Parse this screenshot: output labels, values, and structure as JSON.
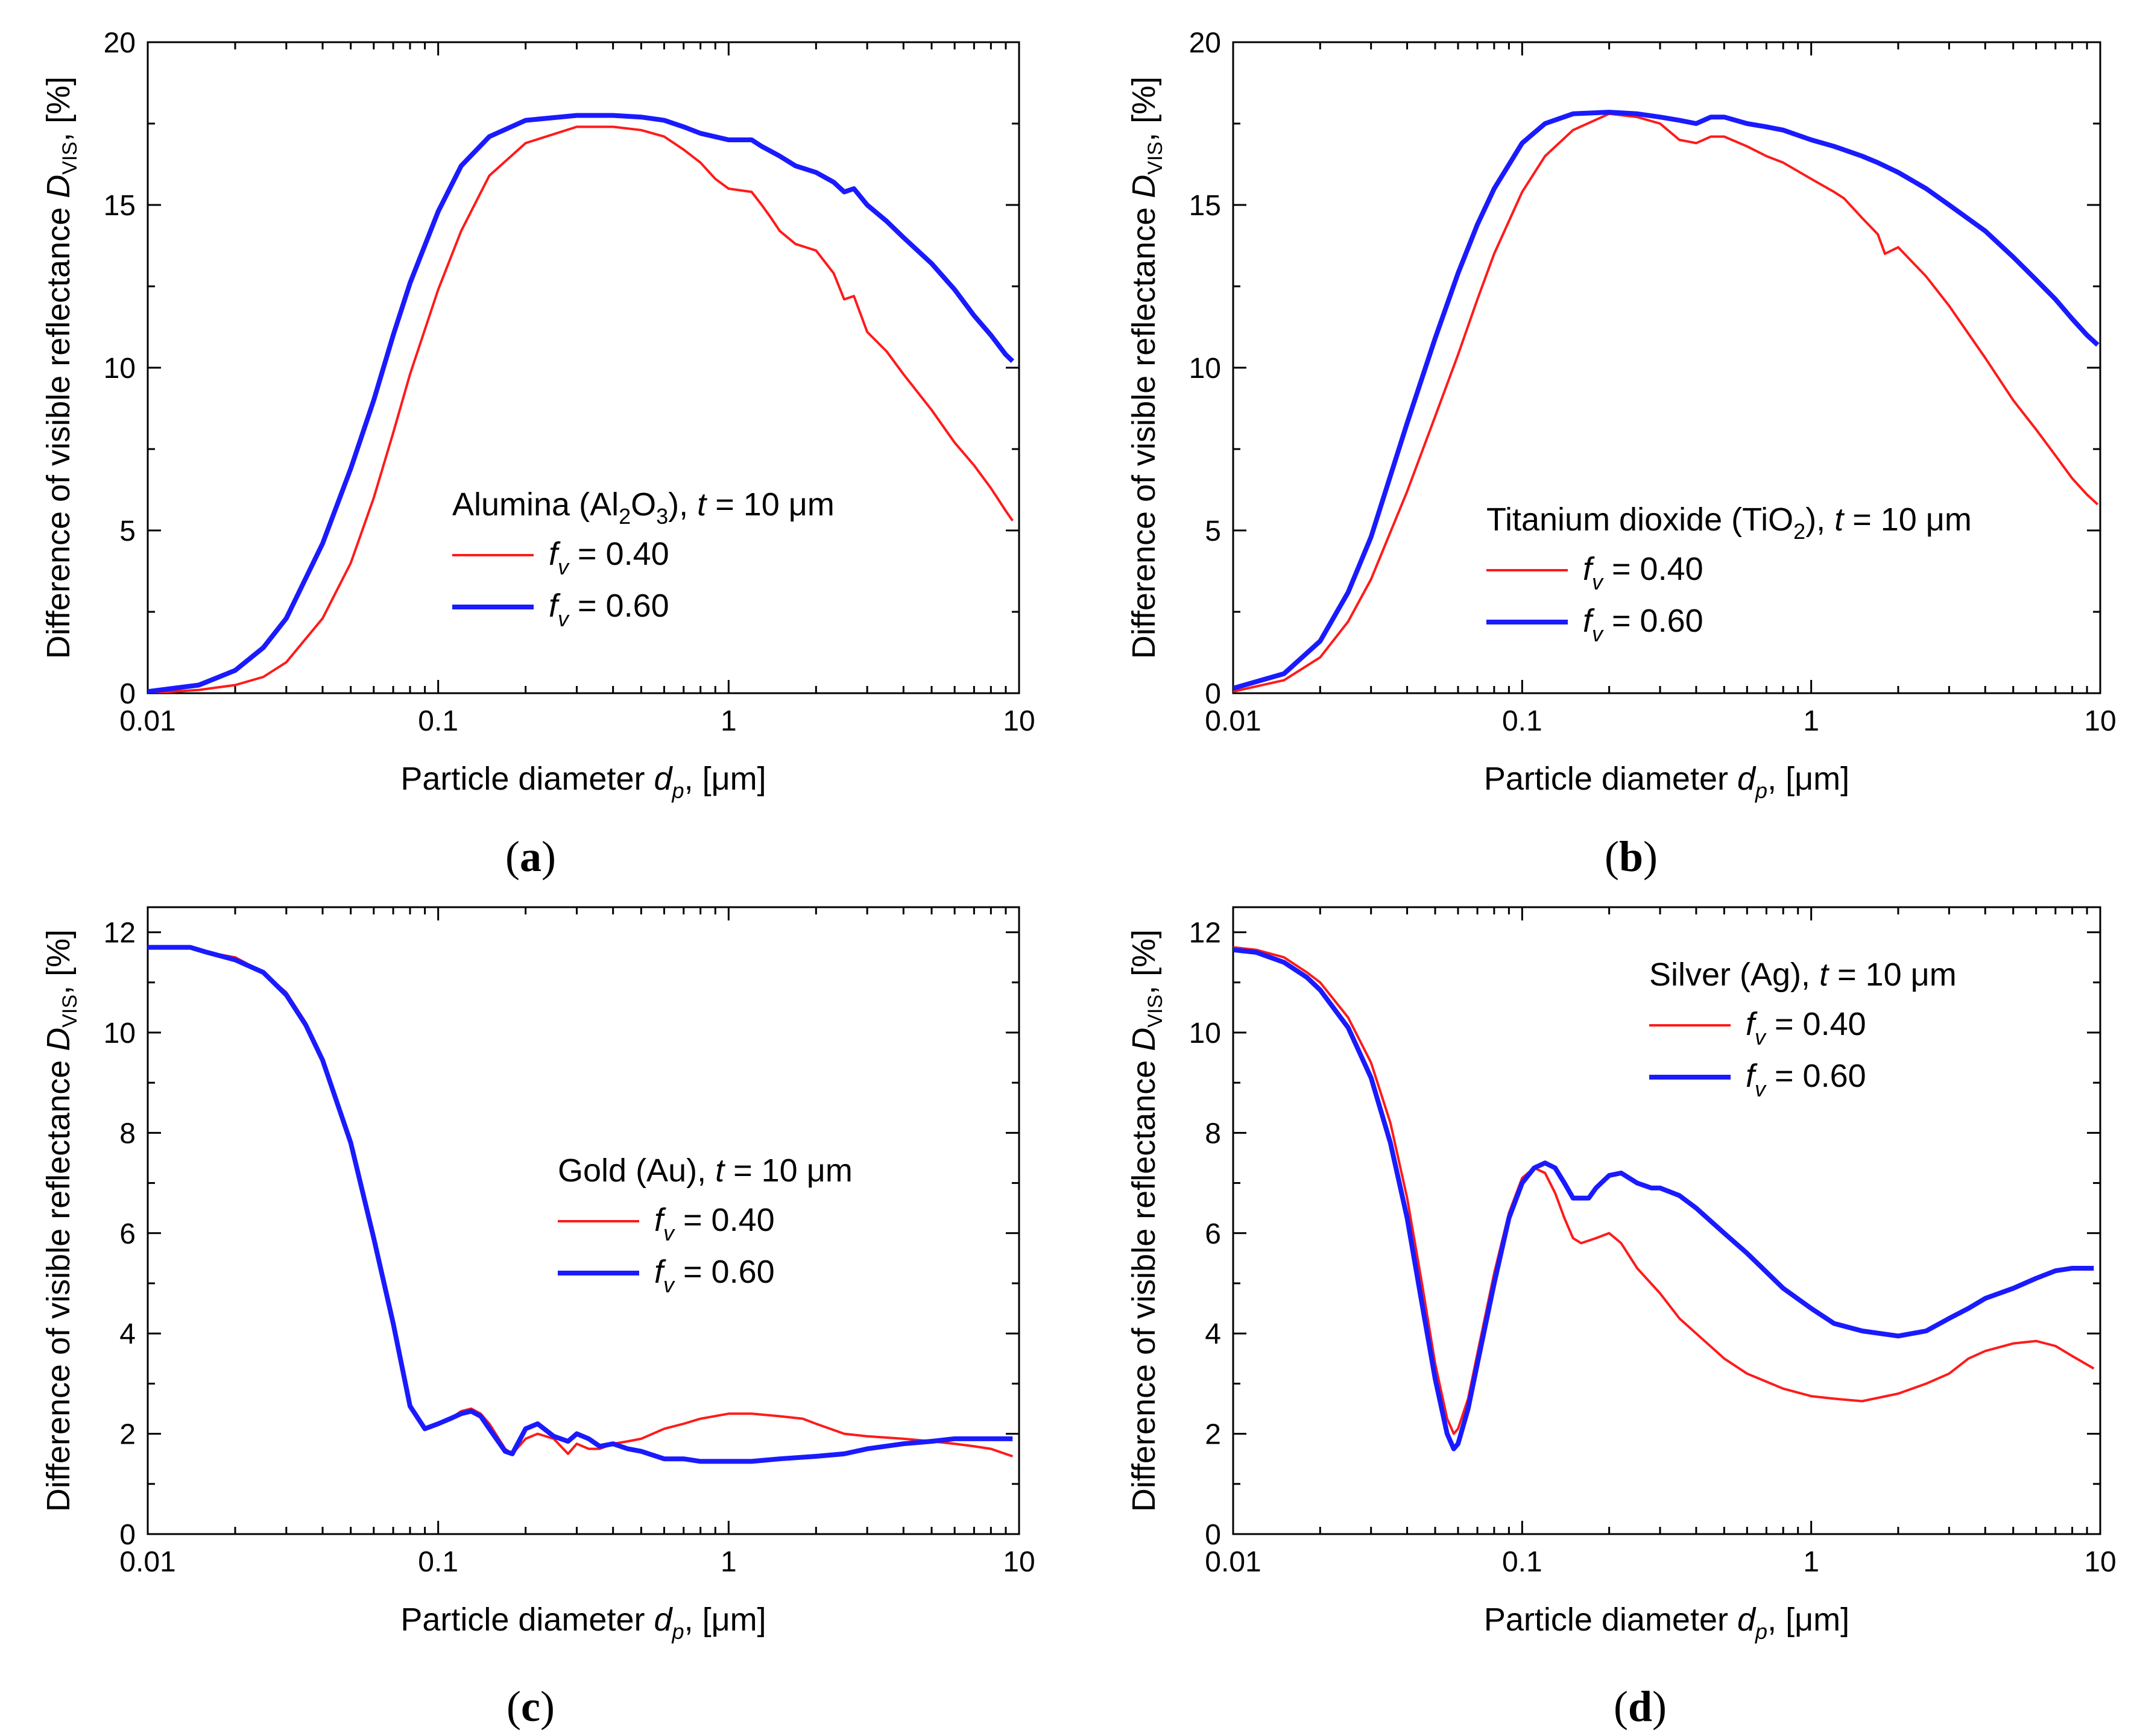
{
  "colors": {
    "series_040": "#ff1a1a",
    "series_060": "#1a1aff",
    "axis": "#000000"
  },
  "axis_labels": {
    "ylabel_prefix": "Difference of visible reflectance ",
    "ylabel_symbol": "D",
    "ylabel_sub": "VIS",
    "ylabel_suffix": ", [%]",
    "xlabel_prefix": "Particle diameter ",
    "xlabel_symbol": "d",
    "xlabel_sub": "p",
    "xlabel_suffix": ", [μm]"
  },
  "legend_common": {
    "t_symbol": "t",
    "t_value": " = 10 μm",
    "f_symbol": "f",
    "f_sub": "v",
    "f040": " = 0.40",
    "f060": " = 0.60"
  },
  "x_tick_labels": [
    "0.01",
    "0.1",
    "1",
    "10"
  ],
  "chart_data": [
    {
      "id": "a",
      "type": "line",
      "panel_label": "a",
      "material": "Alumina (Al",
      "material_sub": "2",
      "material_mid": "O",
      "material_sub2": "3",
      "material_end": "), ",
      "xscale": "log",
      "xlim": [
        0.01,
        10
      ],
      "ylim": [
        0,
        20
      ],
      "yticks": [
        0,
        5,
        10,
        15,
        20
      ],
      "ytick_labels": [
        "0",
        "5",
        "10",
        "15",
        "20"
      ],
      "legend_position": "center-right",
      "series": [
        {
          "name": "f_v = 0.40",
          "x": [
            0.01,
            0.015,
            0.02,
            0.025,
            0.03,
            0.04,
            0.05,
            0.06,
            0.07,
            0.08,
            0.1,
            0.12,
            0.15,
            0.2,
            0.3,
            0.4,
            0.5,
            0.6,
            0.7,
            0.8,
            0.9,
            1.0,
            1.2,
            1.3,
            1.4,
            1.5,
            1.7,
            2.0,
            2.3,
            2.5,
            2.7,
            3.0,
            3.5,
            4.0,
            5.0,
            6.0,
            7.0,
            8.0,
            9.0,
            9.5
          ],
          "y": [
            0.0,
            0.1,
            0.25,
            0.5,
            0.95,
            2.3,
            4.0,
            6.0,
            8.0,
            9.8,
            12.4,
            14.2,
            15.9,
            16.9,
            17.4,
            17.4,
            17.3,
            17.1,
            16.7,
            16.3,
            15.8,
            15.5,
            15.4,
            15.0,
            14.6,
            14.2,
            13.8,
            13.6,
            12.9,
            12.1,
            12.2,
            11.1,
            10.5,
            9.8,
            8.7,
            7.7,
            7.0,
            6.3,
            5.6,
            5.3
          ]
        },
        {
          "name": "f_v = 0.60",
          "x": [
            0.01,
            0.015,
            0.02,
            0.025,
            0.03,
            0.04,
            0.05,
            0.06,
            0.07,
            0.08,
            0.1,
            0.12,
            0.15,
            0.2,
            0.3,
            0.4,
            0.5,
            0.6,
            0.7,
            0.8,
            1.0,
            1.2,
            1.3,
            1.5,
            1.7,
            2.0,
            2.3,
            2.5,
            2.7,
            3.0,
            3.5,
            4.0,
            5.0,
            6.0,
            7.0,
            8.0,
            9.0,
            9.5
          ],
          "y": [
            0.05,
            0.25,
            0.7,
            1.4,
            2.3,
            4.6,
            6.9,
            9.0,
            11.0,
            12.6,
            14.8,
            16.2,
            17.1,
            17.6,
            17.75,
            17.75,
            17.7,
            17.6,
            17.4,
            17.2,
            17.0,
            17.0,
            16.8,
            16.5,
            16.2,
            16.0,
            15.7,
            15.4,
            15.5,
            15.0,
            14.5,
            14.0,
            13.2,
            12.4,
            11.6,
            11.0,
            10.4,
            10.2
          ]
        }
      ]
    },
    {
      "id": "b",
      "type": "line",
      "panel_label": "b",
      "material": "Titanium dioxide (TiO",
      "material_sub": "2",
      "material_mid": "",
      "material_sub2": "",
      "material_end": "), ",
      "xscale": "log",
      "xlim": [
        0.01,
        10
      ],
      "ylim": [
        0,
        20
      ],
      "yticks": [
        0,
        5,
        10,
        15,
        20
      ],
      "ytick_labels": [
        "0",
        "5",
        "10",
        "15",
        "20"
      ],
      "legend_position": "center-right",
      "series": [
        {
          "name": "f_v = 0.40",
          "x": [
            0.01,
            0.015,
            0.02,
            0.025,
            0.03,
            0.04,
            0.05,
            0.06,
            0.07,
            0.08,
            0.1,
            0.12,
            0.15,
            0.2,
            0.25,
            0.3,
            0.35,
            0.4,
            0.45,
            0.5,
            0.6,
            0.7,
            0.8,
            1.0,
            1.2,
            1.3,
            1.5,
            1.7,
            1.8,
            2.0,
            2.5,
            3.0,
            4.0,
            5.0,
            6.0,
            7.0,
            8.0,
            9.0,
            9.8
          ],
          "y": [
            0.05,
            0.4,
            1.1,
            2.2,
            3.5,
            6.2,
            8.5,
            10.4,
            12.1,
            13.5,
            15.4,
            16.5,
            17.3,
            17.8,
            17.7,
            17.5,
            17.0,
            16.9,
            17.1,
            17.1,
            16.8,
            16.5,
            16.3,
            15.8,
            15.4,
            15.2,
            14.6,
            14.1,
            13.5,
            13.7,
            12.8,
            11.9,
            10.3,
            9.0,
            8.1,
            7.3,
            6.6,
            6.1,
            5.8
          ]
        },
        {
          "name": "f_v = 0.60",
          "x": [
            0.01,
            0.015,
            0.02,
            0.025,
            0.03,
            0.04,
            0.05,
            0.06,
            0.07,
            0.08,
            0.1,
            0.12,
            0.15,
            0.2,
            0.25,
            0.3,
            0.35,
            0.4,
            0.45,
            0.5,
            0.6,
            0.7,
            0.8,
            1.0,
            1.2,
            1.5,
            1.7,
            2.0,
            2.5,
            3.0,
            4.0,
            5.0,
            6.0,
            7.0,
            8.0,
            9.0,
            9.8
          ],
          "y": [
            0.15,
            0.6,
            1.6,
            3.1,
            4.8,
            8.3,
            10.9,
            12.9,
            14.4,
            15.5,
            16.9,
            17.5,
            17.8,
            17.85,
            17.8,
            17.7,
            17.6,
            17.5,
            17.7,
            17.7,
            17.5,
            17.4,
            17.3,
            17.0,
            16.8,
            16.5,
            16.3,
            16.0,
            15.5,
            15.0,
            14.2,
            13.4,
            12.7,
            12.1,
            11.5,
            11.0,
            10.7
          ]
        }
      ]
    },
    {
      "id": "c",
      "type": "line",
      "panel_label": "c",
      "material": "Gold (Au), ",
      "material_sub": "",
      "material_mid": "",
      "material_sub2": "",
      "material_end": "",
      "xscale": "log",
      "xlim": [
        0.01,
        10
      ],
      "ylim": [
        0,
        12.5
      ],
      "yticks": [
        0,
        2,
        4,
        6,
        8,
        10,
        12
      ],
      "ytick_labels": [
        "0",
        "2",
        "4",
        "6",
        "8",
        "10",
        "12"
      ],
      "legend_position": "center-right",
      "series": [
        {
          "name": "f_v = 0.40",
          "x": [
            0.01,
            0.012,
            0.014,
            0.016,
            0.02,
            0.025,
            0.03,
            0.035,
            0.04,
            0.05,
            0.06,
            0.07,
            0.08,
            0.09,
            0.1,
            0.11,
            0.12,
            0.13,
            0.14,
            0.15,
            0.17,
            0.18,
            0.2,
            0.22,
            0.25,
            0.28,
            0.3,
            0.33,
            0.36,
            0.4,
            0.45,
            0.5,
            0.6,
            0.7,
            0.8,
            1.0,
            1.2,
            1.5,
            1.8,
            2.0,
            2.5,
            3.0,
            4.0,
            5.0,
            6.0,
            7.0,
            8.0,
            9.5
          ],
          "y": [
            11.7,
            11.7,
            11.7,
            11.6,
            11.5,
            11.2,
            10.8,
            10.2,
            9.5,
            7.8,
            6.0,
            4.3,
            2.6,
            2.1,
            2.2,
            2.3,
            2.45,
            2.5,
            2.4,
            2.2,
            1.7,
            1.6,
            1.9,
            2.0,
            1.9,
            1.6,
            1.8,
            1.7,
            1.7,
            1.8,
            1.85,
            1.9,
            2.1,
            2.2,
            2.3,
            2.4,
            2.4,
            2.35,
            2.3,
            2.2,
            2.0,
            1.95,
            1.9,
            1.85,
            1.8,
            1.75,
            1.7,
            1.55
          ]
        },
        {
          "name": "f_v = 0.60",
          "x": [
            0.01,
            0.012,
            0.014,
            0.016,
            0.02,
            0.025,
            0.03,
            0.035,
            0.04,
            0.05,
            0.06,
            0.07,
            0.08,
            0.09,
            0.1,
            0.11,
            0.12,
            0.13,
            0.14,
            0.15,
            0.17,
            0.18,
            0.2,
            0.22,
            0.25,
            0.28,
            0.3,
            0.33,
            0.36,
            0.4,
            0.45,
            0.5,
            0.6,
            0.7,
            0.8,
            1.0,
            1.2,
            1.5,
            2.0,
            2.5,
            3.0,
            4.0,
            5.0,
            6.0,
            7.0,
            8.0,
            9.5
          ],
          "y": [
            11.7,
            11.7,
            11.7,
            11.6,
            11.45,
            11.2,
            10.75,
            10.15,
            9.45,
            7.8,
            5.9,
            4.2,
            2.55,
            2.1,
            2.2,
            2.3,
            2.4,
            2.45,
            2.35,
            2.1,
            1.65,
            1.6,
            2.1,
            2.2,
            1.95,
            1.85,
            2.0,
            1.9,
            1.75,
            1.8,
            1.7,
            1.65,
            1.5,
            1.5,
            1.45,
            1.45,
            1.45,
            1.5,
            1.55,
            1.6,
            1.7,
            1.8,
            1.85,
            1.9,
            1.9,
            1.9,
            1.9
          ]
        }
      ]
    },
    {
      "id": "d",
      "type": "line",
      "panel_label": "d",
      "material": "Silver (Ag), ",
      "material_sub": "",
      "material_mid": "",
      "material_sub2": "",
      "material_end": "",
      "xscale": "log",
      "xlim": [
        0.01,
        10
      ],
      "ylim": [
        0,
        12.5
      ],
      "yticks": [
        0,
        2,
        4,
        6,
        8,
        10,
        12
      ],
      "ytick_labels": [
        "0",
        "2",
        "4",
        "6",
        "8",
        "10",
        "12"
      ],
      "legend_position": "top-right",
      "series": [
        {
          "name": "f_v = 0.40",
          "x": [
            0.01,
            0.012,
            0.015,
            0.018,
            0.02,
            0.025,
            0.03,
            0.035,
            0.04,
            0.045,
            0.05,
            0.055,
            0.058,
            0.06,
            0.065,
            0.07,
            0.08,
            0.09,
            0.1,
            0.11,
            0.12,
            0.13,
            0.14,
            0.15,
            0.16,
            0.18,
            0.2,
            0.22,
            0.25,
            0.3,
            0.35,
            0.4,
            0.5,
            0.6,
            0.8,
            1.0,
            1.2,
            1.5,
            2.0,
            2.5,
            3.0,
            3.5,
            4.0,
            5.0,
            6.0,
            7.0,
            8.0,
            9.5
          ],
          "y": [
            11.7,
            11.65,
            11.5,
            11.2,
            11.0,
            10.3,
            9.4,
            8.2,
            6.7,
            5.0,
            3.4,
            2.3,
            2.0,
            2.1,
            2.7,
            3.6,
            5.2,
            6.4,
            7.1,
            7.3,
            7.2,
            6.8,
            6.3,
            5.9,
            5.8,
            5.9,
            6.0,
            5.8,
            5.3,
            4.8,
            4.3,
            4.0,
            3.5,
            3.2,
            2.9,
            2.75,
            2.7,
            2.65,
            2.8,
            3.0,
            3.2,
            3.5,
            3.65,
            3.8,
            3.85,
            3.75,
            3.55,
            3.3
          ]
        },
        {
          "name": "f_v = 0.60",
          "x": [
            0.01,
            0.012,
            0.015,
            0.018,
            0.02,
            0.025,
            0.03,
            0.035,
            0.04,
            0.045,
            0.05,
            0.055,
            0.058,
            0.06,
            0.065,
            0.07,
            0.08,
            0.09,
            0.1,
            0.11,
            0.12,
            0.13,
            0.14,
            0.15,
            0.17,
            0.18,
            0.2,
            0.22,
            0.25,
            0.28,
            0.3,
            0.35,
            0.4,
            0.5,
            0.6,
            0.8,
            1.0,
            1.2,
            1.5,
            2.0,
            2.5,
            3.0,
            3.5,
            4.0,
            5.0,
            6.0,
            7.0,
            8.0,
            9.5
          ],
          "y": [
            11.65,
            11.6,
            11.4,
            11.1,
            10.85,
            10.1,
            9.1,
            7.8,
            6.3,
            4.6,
            3.1,
            2.0,
            1.7,
            1.8,
            2.5,
            3.4,
            5.0,
            6.3,
            7.0,
            7.3,
            7.4,
            7.3,
            7.0,
            6.7,
            6.7,
            6.9,
            7.15,
            7.2,
            7.0,
            6.9,
            6.9,
            6.75,
            6.5,
            6.0,
            5.6,
            4.9,
            4.5,
            4.2,
            4.05,
            3.95,
            4.05,
            4.3,
            4.5,
            4.7,
            4.9,
            5.1,
            5.25,
            5.3,
            5.3
          ]
        }
      ]
    }
  ]
}
